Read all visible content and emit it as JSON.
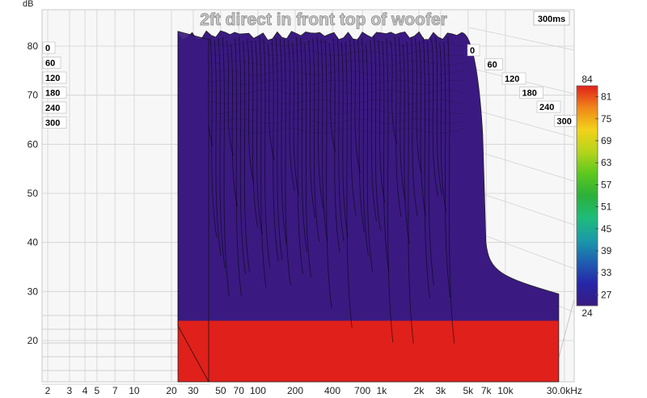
{
  "chart_data": {
    "type": "waterfall",
    "title": "2ft direct in front top of woofer",
    "time_window_label": "300ms",
    "y_axis": {
      "label": "dB",
      "ticks": [
        20,
        30,
        40,
        50,
        60,
        70,
        80
      ],
      "range": [
        12,
        85
      ]
    },
    "x_axis": {
      "scale": "log",
      "range": [
        1.8,
        36000
      ],
      "tick_values": [
        2,
        3,
        4,
        5,
        7,
        10,
        20,
        30,
        50,
        70,
        100,
        200,
        400,
        700,
        1000,
        2000,
        3000,
        5000,
        7000,
        10000,
        30000
      ],
      "tick_labels": [
        "2",
        "3",
        "4",
        "5",
        "7",
        "10",
        "20",
        "30",
        "50",
        "70",
        "100",
        "200",
        "400",
        "700",
        "1k",
        "2k",
        "3k",
        "5k",
        "7k",
        "10k",
        "30.0kHz"
      ]
    },
    "time_axis": {
      "unit": "ms",
      "ticks": [
        "0",
        "60",
        "120",
        "180",
        "240",
        "300"
      ]
    },
    "color_scale": {
      "min": 24,
      "max": 84,
      "labels": [
        "84",
        "81",
        "75",
        "69",
        "63",
        "57",
        "51",
        "45",
        "39",
        "33",
        "27",
        "24"
      ],
      "stops": [
        {
          "value": 24,
          "color": "#3a1a80"
        },
        {
          "value": 30,
          "color": "#2626a8"
        },
        {
          "value": 36,
          "color": "#1f5fb0"
        },
        {
          "value": 42,
          "color": "#1a9aa8"
        },
        {
          "value": 48,
          "color": "#1ebc7a"
        },
        {
          "value": 54,
          "color": "#2bb03a"
        },
        {
          "value": 60,
          "color": "#5cc81e"
        },
        {
          "value": 66,
          "color": "#b6d41c"
        },
        {
          "value": 72,
          "color": "#f2d21a"
        },
        {
          "value": 78,
          "color": "#f0861a"
        },
        {
          "value": 84,
          "color": "#e0201a"
        }
      ]
    },
    "surface": {
      "start_hz": 40,
      "rolloff_hz": 5000,
      "end_hz": 27000,
      "front_level_db": 83,
      "noise_floor_db": 26,
      "slice_count": 60
    }
  }
}
